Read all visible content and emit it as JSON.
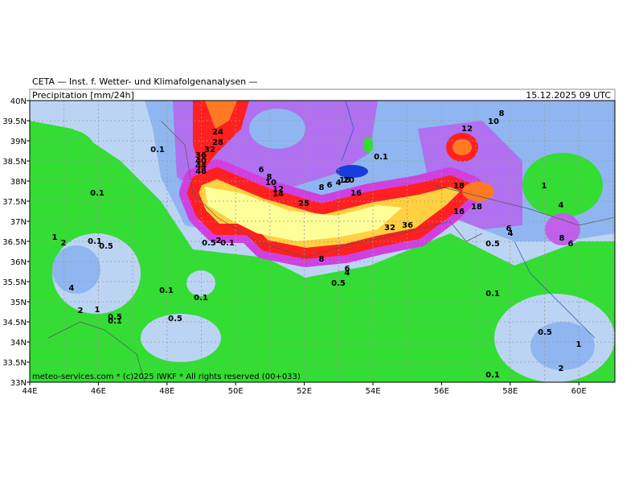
{
  "header": {
    "title": "CETA — Inst. f. Wetter- und Klimafolgenanalysen —",
    "parameter": "Precipitation [mm/24h]",
    "valid_time": "15.12.2025 09 UTC"
  },
  "map": {
    "lat_labels": [
      "40N",
      "39.5N",
      "39N",
      "38.5N",
      "38N",
      "37.5N",
      "37N",
      "36.5N",
      "36N",
      "35.5N",
      "35N",
      "34.5N",
      "34N",
      "33.5N",
      "33N"
    ],
    "lon_labels": [
      "44E",
      "46E",
      "48E",
      "50E",
      "52E",
      "54E",
      "56E",
      "58E",
      "60E"
    ],
    "contour_labels": [
      "24",
      "28",
      "32",
      "36",
      "40",
      "44",
      "48",
      "0.1",
      "0.1",
      "6",
      "8",
      "10",
      "12",
      "14",
      "25",
      "8",
      "6",
      "4",
      "10",
      "20",
      "16",
      "32",
      "36",
      "0.1",
      "12",
      "10",
      "8",
      "18",
      "18",
      "16",
      "1",
      "4",
      "6",
      "4",
      "8",
      "6",
      "0.5",
      "0.5",
      "2",
      "0.1",
      "1",
      "2",
      "0.1",
      "0.5",
      "8",
      "6",
      "4",
      "0.5",
      "4",
      "0.1",
      "0.1",
      "2",
      "1",
      "0.5",
      "0.1",
      "0.5",
      "0.1",
      "0.5",
      "1",
      "2",
      "0.1"
    ]
  },
  "footer": {
    "copyright": "meteo-services.com * (c)2025 IWKF * All rights reserved (00+033)"
  }
}
